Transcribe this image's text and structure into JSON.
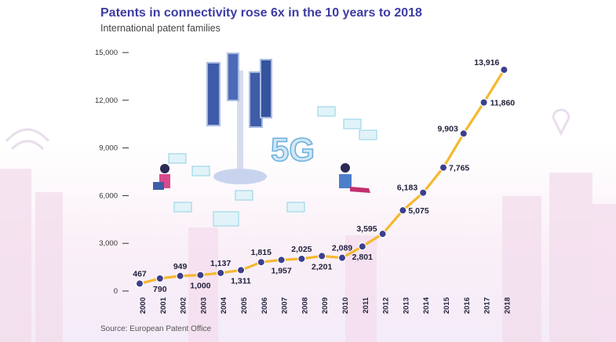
{
  "title": "Patents in connectivity rose 6x in the 10 years to 2018",
  "subtitle": "International patent families",
  "source": "Source: European Patent Office",
  "illustration": {
    "badge_text": "5G"
  },
  "colors": {
    "line": "#f5b82e",
    "marker": "#3d3f8f",
    "title": "#3d3ca3"
  },
  "chart_data": {
    "type": "line",
    "title": "Patents in connectivity rose 6x in the 10 years to 2018",
    "subtitle": "International patent families",
    "xlabel": "",
    "ylabel": "",
    "categories": [
      "2000",
      "2001",
      "2002",
      "2003",
      "2004",
      "2005",
      "2006",
      "2007",
      "2008",
      "2009",
      "2010",
      "2011",
      "2012",
      "2013",
      "2014",
      "2015",
      "2016",
      "2017",
      "2018"
    ],
    "values": [
      467,
      790,
      949,
      1000,
      1137,
      1311,
      1815,
      1957,
      2025,
      2201,
      2089,
      2801,
      3595,
      5075,
      6183,
      7765,
      9903,
      11860,
      13916
    ],
    "data_labels": [
      "467",
      "790",
      "949",
      "1,000",
      "1,137",
      "1,311",
      "1,815",
      "1,957",
      "2,025",
      "2,201",
      "2,089",
      "2,801",
      "3,595",
      "5,075",
      "6,183",
      "7,765",
      "9,903",
      "11,860",
      "13,916"
    ],
    "yticks": [
      0,
      3000,
      6000,
      9000,
      12000,
      15000
    ],
    "ytick_labels": [
      "0",
      "3,000",
      "6,000",
      "9,000",
      "12,000",
      "15,000"
    ],
    "ylim": [
      0,
      15000
    ],
    "grid": false,
    "legend": "none"
  }
}
